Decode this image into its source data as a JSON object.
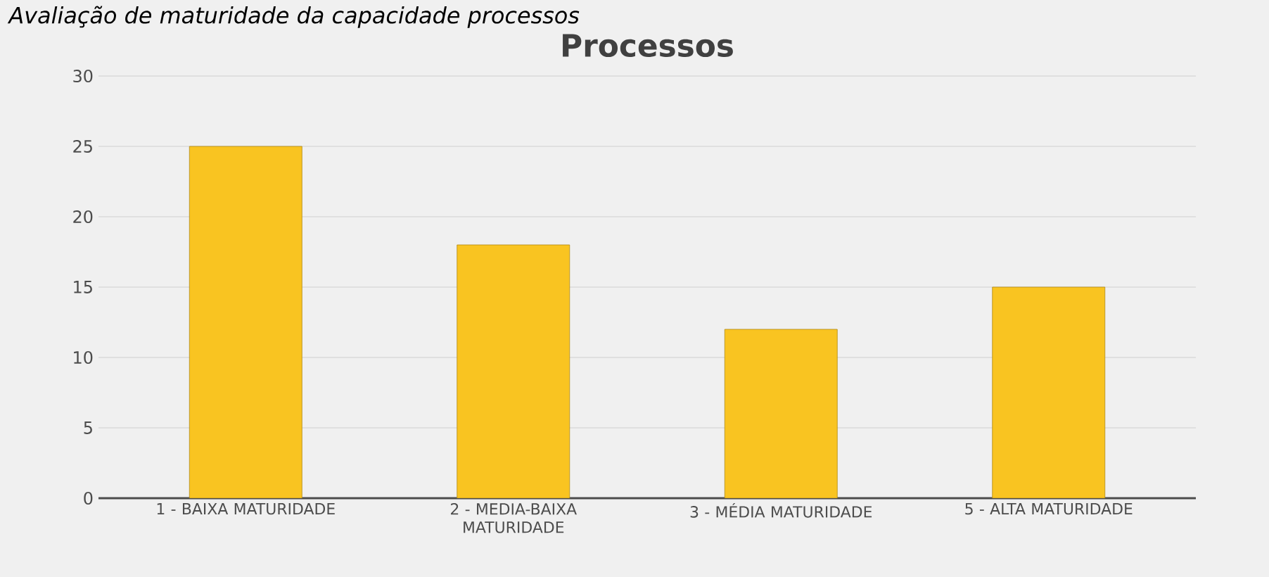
{
  "chart_data": {
    "type": "bar",
    "title": "Processos",
    "subtitle": "Avaliação de maturidade da capacidade processos",
    "categories": [
      "1 - BAIXA MATURIDADE",
      "2 - MEDIA-BAIXA MATURIDADE",
      "3 - MÉDIA MATURIDADE",
      "5 - ALTA MATURIDADE"
    ],
    "values": [
      25,
      18,
      12,
      15
    ],
    "color": "#f9c421",
    "ylim": [
      0,
      30
    ],
    "yticks": [
      0,
      5,
      10,
      15,
      20,
      25,
      30
    ],
    "grid": "y"
  }
}
